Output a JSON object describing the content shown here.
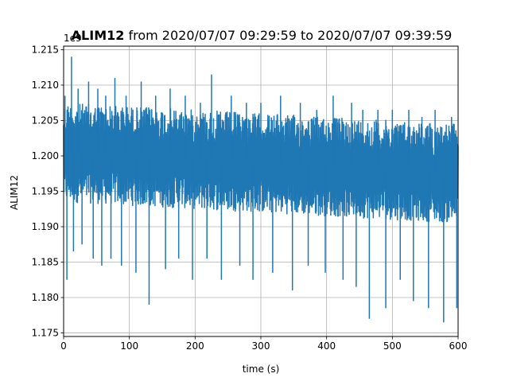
{
  "chart_data": {
    "type": "line",
    "title_bold": "ALIM12",
    "title_rest": " from 2020/07/07 09:29:59 to 2020/07/07 09:39:59",
    "xlabel": "time (s)",
    "ylabel": "ALIM12",
    "offset_label": "1e9",
    "xlim": [
      0,
      600
    ],
    "ylim": [
      1.1745,
      1.2155
    ],
    "xticks": [
      0,
      100,
      200,
      300,
      400,
      500,
      600
    ],
    "xtick_labels": [
      "0",
      "100",
      "200",
      "300",
      "400",
      "500",
      "600"
    ],
    "yticks": [
      1.175,
      1.18,
      1.185,
      1.19,
      1.195,
      1.2,
      1.205,
      1.21,
      1.215
    ],
    "ytick_labels": [
      "1.175",
      "1.180",
      "1.185",
      "1.190",
      "1.195",
      "1.200",
      "1.205",
      "1.210",
      "1.215"
    ],
    "grid": true,
    "series": [
      {
        "color": "#1f77b4",
        "band": {
          "x": [
            0,
            100,
            200,
            300,
            400,
            500,
            600
          ],
          "upper": [
            1.2075,
            1.207,
            1.2065,
            1.206,
            1.2055,
            1.205,
            1.2045
          ],
          "lower": [
            1.1935,
            1.193,
            1.1925,
            1.192,
            1.1915,
            1.191,
            1.1905
          ]
        },
        "spikes": [
          {
            "x": 2,
            "y": 1.2085
          },
          {
            "x": 5,
            "y": 1.1825
          },
          {
            "x": 12,
            "y": 1.214
          },
          {
            "x": 15,
            "y": 1.1865
          },
          {
            "x": 22,
            "y": 1.2095
          },
          {
            "x": 28,
            "y": 1.1875
          },
          {
            "x": 38,
            "y": 1.2105
          },
          {
            "x": 45,
            "y": 1.1855
          },
          {
            "x": 52,
            "y": 1.2095
          },
          {
            "x": 58,
            "y": 1.1845
          },
          {
            "x": 64,
            "y": 1.2085
          },
          {
            "x": 72,
            "y": 1.1855
          },
          {
            "x": 78,
            "y": 1.211
          },
          {
            "x": 88,
            "y": 1.1845
          },
          {
            "x": 95,
            "y": 1.2085
          },
          {
            "x": 110,
            "y": 1.1835
          },
          {
            "x": 118,
            "y": 1.2105
          },
          {
            "x": 130,
            "y": 1.179
          },
          {
            "x": 140,
            "y": 1.2085
          },
          {
            "x": 155,
            "y": 1.184
          },
          {
            "x": 162,
            "y": 1.2095
          },
          {
            "x": 175,
            "y": 1.1855
          },
          {
            "x": 185,
            "y": 1.2085
          },
          {
            "x": 196,
            "y": 1.1825
          },
          {
            "x": 208,
            "y": 1.2075
          },
          {
            "x": 218,
            "y": 1.1855
          },
          {
            "x": 225,
            "y": 1.2115
          },
          {
            "x": 240,
            "y": 1.1825
          },
          {
            "x": 255,
            "y": 1.2085
          },
          {
            "x": 268,
            "y": 1.1845
          },
          {
            "x": 278,
            "y": 1.2075
          },
          {
            "x": 288,
            "y": 1.1825
          },
          {
            "x": 300,
            "y": 1.2075
          },
          {
            "x": 318,
            "y": 1.1835
          },
          {
            "x": 330,
            "y": 1.2085
          },
          {
            "x": 348,
            "y": 1.181
          },
          {
            "x": 360,
            "y": 1.2075
          },
          {
            "x": 372,
            "y": 1.1845
          },
          {
            "x": 385,
            "y": 1.2065
          },
          {
            "x": 398,
            "y": 1.1835
          },
          {
            "x": 410,
            "y": 1.2085
          },
          {
            "x": 425,
            "y": 1.1825
          },
          {
            "x": 438,
            "y": 1.2075
          },
          {
            "x": 445,
            "y": 1.1815
          },
          {
            "x": 455,
            "y": 1.2065
          },
          {
            "x": 465,
            "y": 1.177
          },
          {
            "x": 478,
            "y": 1.2065
          },
          {
            "x": 490,
            "y": 1.1785
          },
          {
            "x": 500,
            "y": 1.2065
          },
          {
            "x": 512,
            "y": 1.1825
          },
          {
            "x": 525,
            "y": 1.2065
          },
          {
            "x": 532,
            "y": 1.1795
          },
          {
            "x": 545,
            "y": 1.2055
          },
          {
            "x": 555,
            "y": 1.1785
          },
          {
            "x": 565,
            "y": 1.2065
          },
          {
            "x": 578,
            "y": 1.1765
          },
          {
            "x": 590,
            "y": 1.2055
          },
          {
            "x": 598,
            "y": 1.1785
          }
        ]
      }
    ]
  }
}
